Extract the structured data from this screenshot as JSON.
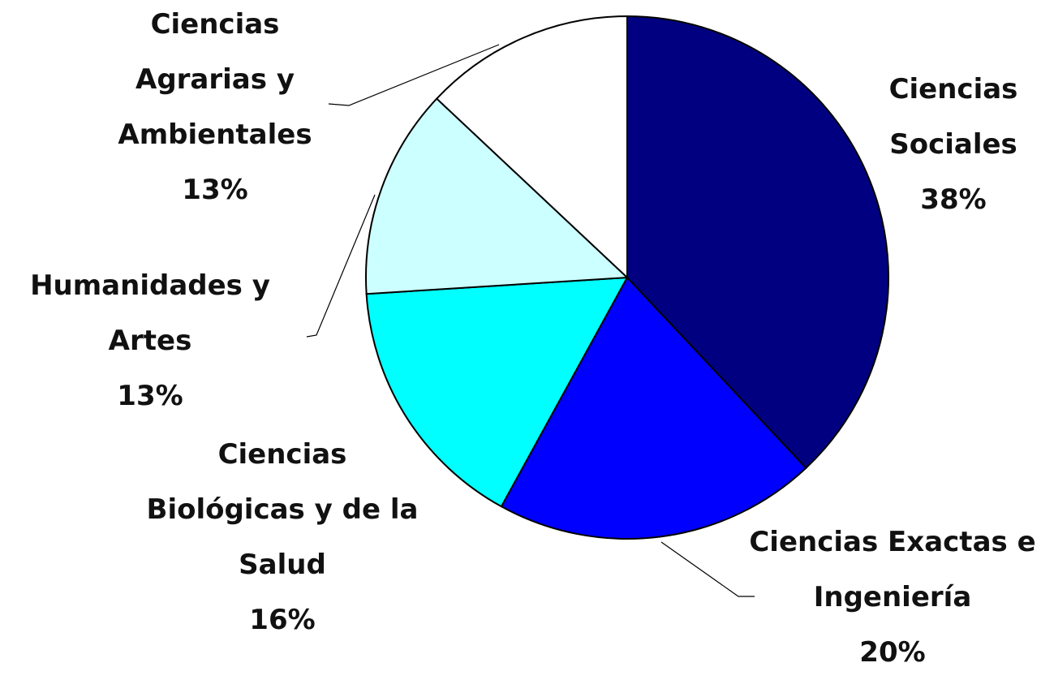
{
  "chart_data": {
    "type": "pie",
    "categories": [
      "Ciencias Sociales",
      "Ciencias Exactas e Ingeniería",
      "Ciencias Biológicas y de la Salud",
      "Humanidades y Artes",
      "Ciencias Agrarias y Ambientales"
    ],
    "values": [
      38,
      20,
      16,
      13,
      13
    ],
    "value_labels": [
      "38%",
      "20%",
      "16%",
      "13%",
      "13%"
    ],
    "colors": [
      "#000080",
      "#0000ff",
      "#00ffff",
      "#ccffff",
      "#ffffff"
    ]
  }
}
